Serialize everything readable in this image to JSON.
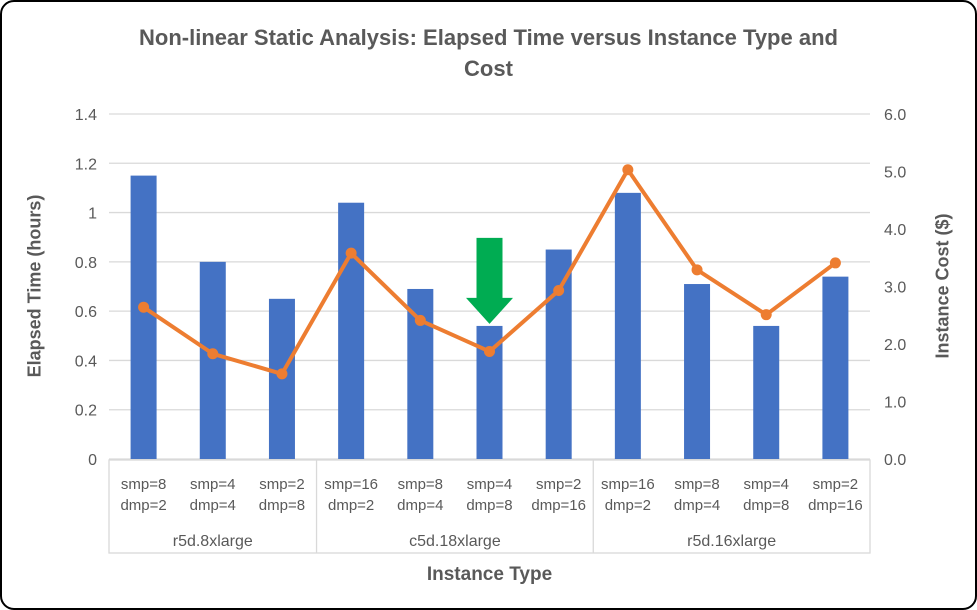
{
  "title": "Non-linear Static Analysis: Elapsed Time versus Instance Type and Cost",
  "chart_data": {
    "type": "bar",
    "subtype": "combo-bar-line-dual-axis",
    "title": "Non-linear Static Analysis: Elapsed Time versus Instance Type and Cost",
    "xlabel": "Instance Type",
    "ylabel_left": "Elapsed Time (hours)",
    "ylabel_right": "Instance Cost ($)",
    "ylim_left": [
      0,
      1.4
    ],
    "ylim_right": [
      0.0,
      6.0
    ],
    "yticks_left": [
      "0",
      "0.2",
      "0.4",
      "0.6",
      "0.8",
      "1",
      "1.2",
      "1.4"
    ],
    "ytick_values_left": [
      0,
      0.2,
      0.4,
      0.6,
      0.8,
      1,
      1.2,
      1.4
    ],
    "yticks_right": [
      "0.0",
      "1.0",
      "2.0",
      "3.0",
      "4.0",
      "5.0",
      "6.0"
    ],
    "grid": true,
    "legend": "none",
    "categories": [
      {
        "line1": "smp=8",
        "line2": "dmp=2"
      },
      {
        "line1": "smp=4",
        "line2": "dmp=4"
      },
      {
        "line1": "smp=2",
        "line2": "dmp=8"
      },
      {
        "line1": "smp=16",
        "line2": "dmp=2"
      },
      {
        "line1": "smp=8",
        "line2": "dmp=4"
      },
      {
        "line1": "smp=4",
        "line2": "dmp=8"
      },
      {
        "line1": "smp=2",
        "line2": "dmp=16"
      },
      {
        "line1": "smp=16",
        "line2": "dmp=2"
      },
      {
        "line1": "smp=8",
        "line2": "dmp=4"
      },
      {
        "line1": "smp=4",
        "line2": "dmp=8"
      },
      {
        "line1": "smp=2",
        "line2": "dmp=16"
      }
    ],
    "category_groups": [
      {
        "label": "r5d.8xlarge",
        "span": 3
      },
      {
        "label": "c5d.18xlarge",
        "span": 4
      },
      {
        "label": "r5d.16xlarge",
        "span": 4
      }
    ],
    "series": [
      {
        "name": "Elapsed Time (hours)",
        "render": "bar",
        "axis": "left",
        "color": "#4472C4",
        "values": [
          1.15,
          0.8,
          0.65,
          1.04,
          0.69,
          0.54,
          0.85,
          1.08,
          0.71,
          0.54,
          0.74
        ]
      },
      {
        "name": "Instance Cost ($)",
        "render": "line",
        "axis": "right",
        "color": "#ED7D31",
        "values": [
          2.64,
          1.83,
          1.48,
          3.58,
          2.41,
          1.87,
          2.93,
          5.03,
          3.29,
          2.51,
          3.41
        ]
      }
    ],
    "annotation": {
      "type": "down-arrow",
      "color": "#00AC52",
      "category_index": 5,
      "points_at": "smp=4 dmp=8 bar of c5d.18xlarge"
    },
    "colors": {
      "bar": "#4472C4",
      "line": "#ED7D31",
      "arrow": "#00AC52",
      "gridline": "#D9D9D9",
      "text": "#595959"
    }
  }
}
